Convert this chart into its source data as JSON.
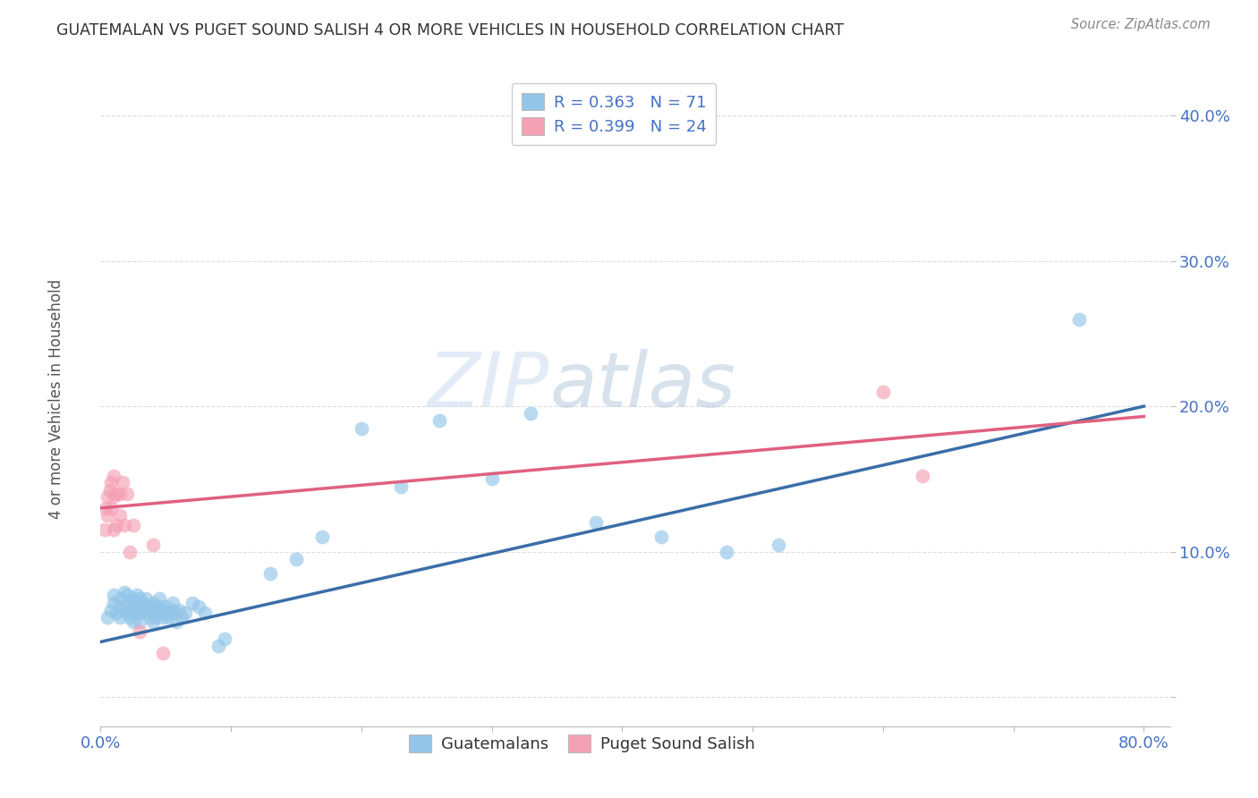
{
  "title": "GUATEMALAN VS PUGET SOUND SALISH 4 OR MORE VEHICLES IN HOUSEHOLD CORRELATION CHART",
  "source": "Source: ZipAtlas.com",
  "ylabel_text": "4 or more Vehicles in Household",
  "xlim": [
    0.0,
    0.82
  ],
  "ylim": [
    -0.02,
    0.43
  ],
  "yticks": [
    0.0,
    0.1,
    0.2,
    0.3,
    0.4
  ],
  "ytick_labels": [
    "",
    "10.0%",
    "20.0%",
    "30.0%",
    "40.0%"
  ],
  "xticks": [
    0.0,
    0.1,
    0.2,
    0.3,
    0.4,
    0.5,
    0.6,
    0.7,
    0.8
  ],
  "xtick_labels": [
    "0.0%",
    "",
    "",
    "",
    "",
    "",
    "",
    "",
    "80.0%"
  ],
  "blue_color": "#92C5E8",
  "blue_line_color": "#3A6EA8",
  "pink_color": "#F5A0B5",
  "pink_line_color": "#E06080",
  "watermark": "ZIPatlas",
  "blue_line_y_start": 0.038,
  "blue_line_y_end": 0.2,
  "pink_line_y_start": 0.13,
  "pink_line_y_end": 0.193,
  "blue_scatter_x": [
    0.005,
    0.008,
    0.01,
    0.01,
    0.012,
    0.015,
    0.015,
    0.015,
    0.018,
    0.018,
    0.02,
    0.02,
    0.02,
    0.022,
    0.022,
    0.025,
    0.025,
    0.025,
    0.025,
    0.028,
    0.028,
    0.03,
    0.03,
    0.03,
    0.03,
    0.032,
    0.032,
    0.035,
    0.035,
    0.035,
    0.038,
    0.038,
    0.04,
    0.04,
    0.04,
    0.04,
    0.042,
    0.042,
    0.045,
    0.045,
    0.045,
    0.048,
    0.048,
    0.05,
    0.05,
    0.052,
    0.055,
    0.055,
    0.055,
    0.058,
    0.06,
    0.062,
    0.065,
    0.07,
    0.075,
    0.08,
    0.09,
    0.095,
    0.13,
    0.15,
    0.17,
    0.2,
    0.23,
    0.26,
    0.3,
    0.33,
    0.38,
    0.43,
    0.48,
    0.52,
    0.75
  ],
  "blue_scatter_y": [
    0.055,
    0.06,
    0.065,
    0.07,
    0.058,
    0.062,
    0.055,
    0.068,
    0.06,
    0.072,
    0.058,
    0.065,
    0.07,
    0.062,
    0.055,
    0.06,
    0.068,
    0.058,
    0.052,
    0.065,
    0.07,
    0.062,
    0.058,
    0.068,
    0.052,
    0.06,
    0.065,
    0.062,
    0.058,
    0.068,
    0.055,
    0.06,
    0.062,
    0.058,
    0.065,
    0.052,
    0.06,
    0.055,
    0.062,
    0.058,
    0.068,
    0.055,
    0.06,
    0.062,
    0.058,
    0.055,
    0.06,
    0.065,
    0.058,
    0.052,
    0.06,
    0.055,
    0.058,
    0.065,
    0.062,
    0.058,
    0.035,
    0.04,
    0.085,
    0.095,
    0.11,
    0.185,
    0.145,
    0.19,
    0.15,
    0.195,
    0.12,
    0.11,
    0.1,
    0.105,
    0.26
  ],
  "pink_scatter_x": [
    0.003,
    0.004,
    0.005,
    0.005,
    0.007,
    0.008,
    0.008,
    0.01,
    0.01,
    0.01,
    0.012,
    0.012,
    0.015,
    0.015,
    0.017,
    0.018,
    0.02,
    0.022,
    0.025,
    0.03,
    0.04,
    0.048,
    0.6,
    0.63
  ],
  "pink_scatter_y": [
    0.115,
    0.13,
    0.138,
    0.125,
    0.142,
    0.148,
    0.13,
    0.152,
    0.138,
    0.115,
    0.14,
    0.118,
    0.14,
    0.125,
    0.148,
    0.118,
    0.14,
    0.1,
    0.118,
    0.045,
    0.105,
    0.03,
    0.21,
    0.152
  ],
  "grid_color": "#DDDDDD",
  "background_color": "#FFFFFF",
  "title_color": "#333333",
  "axis_label_color": "#555555",
  "tick_color": "#4472C4",
  "watermark_color": "#C8D8EE",
  "watermark_alpha": 0.45
}
